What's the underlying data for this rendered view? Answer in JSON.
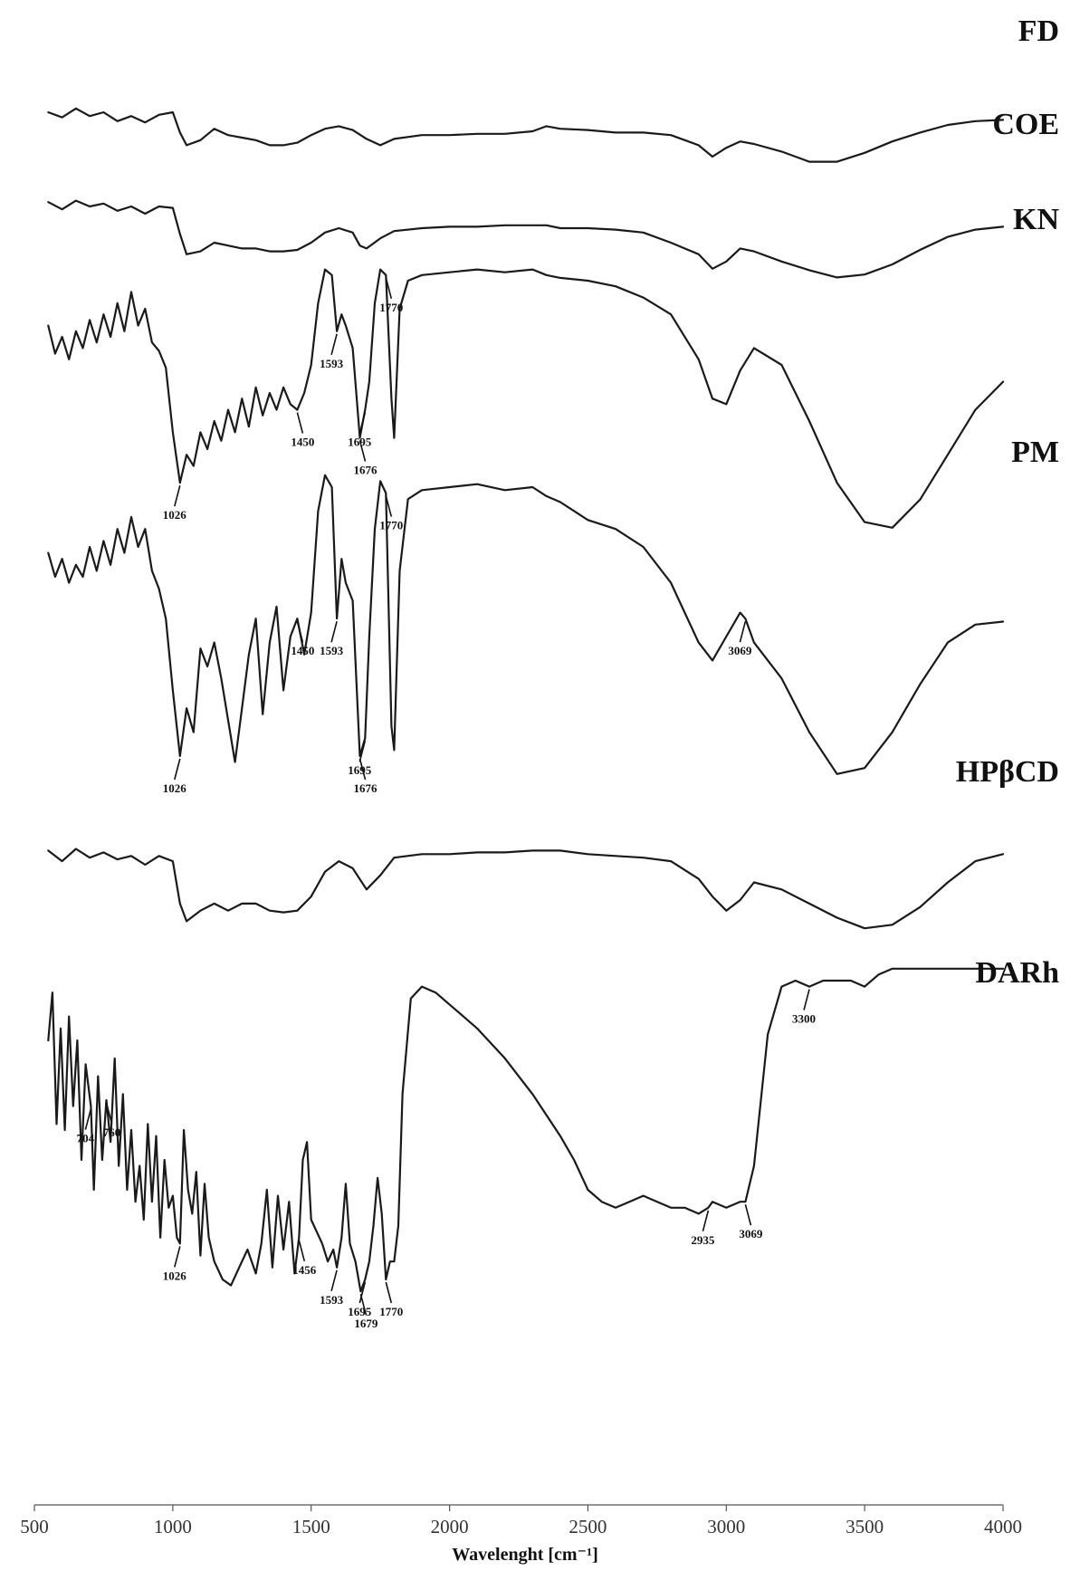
{
  "chart_data": {
    "type": "line",
    "xlabel": "Wavelenght [cm⁻¹]",
    "xlim": [
      500,
      4000
    ],
    "x_ticks": [
      500,
      1000,
      1500,
      2000,
      2500,
      3000,
      3500,
      4000
    ],
    "y_axis": "none (stacked spectra, arbitrary offset)",
    "grid": false,
    "series": [
      {
        "name": "FD",
        "x": [
          550,
          600,
          650,
          700,
          750,
          800,
          850,
          900,
          950,
          1000,
          1026,
          1050,
          1100,
          1150,
          1200,
          1250,
          1300,
          1350,
          1400,
          1450,
          1500,
          1550,
          1600,
          1650,
          1700,
          1750,
          1800,
          1900,
          2000,
          2100,
          2200,
          2300,
          2350,
          2400,
          2500,
          2600,
          2700,
          2800,
          2900,
          2950,
          3000,
          3050,
          3100,
          3200,
          3300,
          3400,
          3500,
          3600,
          3700,
          3800,
          3900,
          4000
        ],
        "y": [
          60,
          64,
          57,
          63,
          60,
          67,
          63,
          68,
          62,
          60,
          76,
          86,
          82,
          73,
          78,
          80,
          82,
          86,
          86,
          84,
          78,
          73,
          71,
          74,
          81,
          86,
          81,
          78,
          78,
          77,
          77,
          75,
          71,
          73,
          74,
          76,
          76,
          78,
          86,
          95,
          88,
          83,
          85,
          91,
          99,
          99,
          92,
          83,
          76,
          70,
          67,
          66
        ]
      },
      {
        "name": "COE",
        "x": [
          550,
          600,
          650,
          700,
          750,
          800,
          850,
          900,
          950,
          1000,
          1026,
          1050,
          1100,
          1150,
          1200,
          1250,
          1300,
          1350,
          1400,
          1450,
          1500,
          1550,
          1600,
          1650,
          1676,
          1700,
          1750,
          1800,
          1900,
          2000,
          2100,
          2200,
          2300,
          2350,
          2400,
          2500,
          2600,
          2700,
          2800,
          2900,
          2950,
          3000,
          3050,
          3100,
          3200,
          3300,
          3400,
          3500,
          3600,
          3700,
          3800,
          3900,
          4000
        ],
        "y": [
          52,
          57,
          51,
          55,
          53,
          58,
          55,
          60,
          55,
          56,
          74,
          88,
          86,
          80,
          82,
          84,
          84,
          86,
          86,
          85,
          80,
          73,
          70,
          73,
          82,
          84,
          77,
          72,
          70,
          69,
          69,
          68,
          68,
          68,
          70,
          70,
          71,
          73,
          80,
          88,
          98,
          93,
          84,
          86,
          93,
          99,
          104,
          102,
          95,
          85,
          76,
          71,
          69
        ]
      },
      {
        "name": "KN",
        "x": [
          550,
          575,
          600,
          625,
          650,
          675,
          700,
          725,
          750,
          775,
          800,
          825,
          850,
          875,
          900,
          925,
          950,
          975,
          1000,
          1026,
          1050,
          1075,
          1100,
          1125,
          1150,
          1175,
          1200,
          1225,
          1250,
          1275,
          1300,
          1325,
          1350,
          1375,
          1400,
          1425,
          1450,
          1475,
          1500,
          1525,
          1550,
          1575,
          1593,
          1610,
          1625,
          1650,
          1676,
          1695,
          1710,
          1730,
          1750,
          1770,
          1790,
          1800,
          1820,
          1850,
          1900,
          2000,
          2100,
          2200,
          2300,
          2350,
          2400,
          2500,
          2600,
          2700,
          2800,
          2900,
          2950,
          3000,
          3050,
          3100,
          3200,
          3300,
          3400,
          3500,
          3600,
          3700,
          3800,
          3900,
          4000
        ],
        "y": [
          36,
          46,
          40,
          48,
          38,
          44,
          34,
          42,
          32,
          40,
          28,
          38,
          24,
          36,
          30,
          42,
          45,
          51,
          74,
          92,
          82,
          86,
          74,
          80,
          70,
          77,
          66,
          74,
          62,
          72,
          58,
          68,
          60,
          66,
          58,
          64,
          66,
          60,
          50,
          28,
          16,
          18,
          38,
          32,
          36,
          44,
          76,
          66,
          56,
          28,
          16,
          18,
          62,
          76,
          30,
          20,
          18,
          17,
          16,
          17,
          16,
          18,
          19,
          20,
          22,
          26,
          32,
          48,
          62,
          64,
          52,
          44,
          50,
          70,
          92,
          106,
          108,
          98,
          82,
          66,
          56
        ]
      },
      {
        "name": "PM",
        "x": [
          550,
          575,
          600,
          625,
          650,
          675,
          700,
          725,
          750,
          775,
          800,
          825,
          850,
          875,
          900,
          925,
          950,
          975,
          1000,
          1026,
          1050,
          1075,
          1100,
          1125,
          1150,
          1175,
          1200,
          1225,
          1250,
          1275,
          1300,
          1325,
          1350,
          1375,
          1400,
          1425,
          1450,
          1475,
          1500,
          1525,
          1550,
          1575,
          1593,
          1610,
          1625,
          1650,
          1676,
          1695,
          1710,
          1730,
          1750,
          1770,
          1790,
          1800,
          1820,
          1850,
          1900,
          2000,
          2100,
          2200,
          2300,
          2350,
          2400,
          2500,
          2600,
          2700,
          2800,
          2900,
          2950,
          3000,
          3050,
          3069,
          3100,
          3200,
          3300,
          3400,
          3500,
          3600,
          3700,
          3800,
          3900,
          4000
        ],
        "y": [
          32,
          40,
          34,
          42,
          36,
          40,
          30,
          38,
          28,
          36,
          24,
          32,
          20,
          30,
          24,
          38,
          44,
          54,
          78,
          100,
          84,
          92,
          64,
          70,
          62,
          74,
          88,
          102,
          84,
          66,
          54,
          86,
          62,
          50,
          78,
          60,
          54,
          66,
          52,
          18,
          6,
          10,
          54,
          34,
          42,
          48,
          100,
          94,
          60,
          24,
          8,
          12,
          90,
          98,
          38,
          14,
          11,
          10,
          9,
          11,
          10,
          13,
          15,
          21,
          24,
          30,
          42,
          62,
          68,
          60,
          52,
          54,
          62,
          74,
          92,
          106,
          104,
          92,
          76,
          62,
          56,
          55
        ]
      },
      {
        "name": "HPβCD",
        "x": [
          550,
          600,
          650,
          700,
          750,
          800,
          850,
          900,
          950,
          1000,
          1026,
          1050,
          1100,
          1150,
          1200,
          1250,
          1300,
          1350,
          1400,
          1450,
          1500,
          1550,
          1600,
          1650,
          1700,
          1750,
          1800,
          1900,
          2000,
          2100,
          2200,
          2300,
          2350,
          2400,
          2500,
          2600,
          2700,
          2800,
          2900,
          2950,
          3000,
          3050,
          3100,
          3200,
          3300,
          3400,
          3500,
          3600,
          3700,
          3800,
          3900,
          4000
        ],
        "y": [
          52,
          58,
          51,
          56,
          53,
          57,
          55,
          60,
          55,
          58,
          82,
          92,
          86,
          82,
          86,
          82,
          82,
          86,
          87,
          86,
          78,
          64,
          58,
          62,
          74,
          66,
          56,
          54,
          54,
          53,
          53,
          52,
          52,
          52,
          54,
          55,
          56,
          58,
          68,
          78,
          86,
          80,
          70,
          74,
          82,
          90,
          96,
          94,
          84,
          70,
          58,
          54
        ]
      },
      {
        "name": "DARh",
        "x": [
          550,
          565,
          580,
          595,
          610,
          625,
          640,
          655,
          670,
          685,
          704,
          715,
          730,
          745,
          760,
          775,
          790,
          805,
          820,
          835,
          850,
          865,
          880,
          895,
          910,
          925,
          940,
          955,
          970,
          985,
          1000,
          1015,
          1026,
          1040,
          1055,
          1070,
          1085,
          1100,
          1115,
          1130,
          1150,
          1180,
          1210,
          1240,
          1270,
          1300,
          1320,
          1340,
          1360,
          1380,
          1400,
          1420,
          1440,
          1456,
          1470,
          1485,
          1500,
          1520,
          1540,
          1560,
          1580,
          1593,
          1610,
          1625,
          1640,
          1660,
          1679,
          1695,
          1710,
          1725,
          1740,
          1755,
          1770,
          1785,
          1800,
          1815,
          1830,
          1860,
          1900,
          1950,
          2000,
          2050,
          2100,
          2200,
          2300,
          2400,
          2450,
          2500,
          2550,
          2600,
          2650,
          2700,
          2750,
          2800,
          2850,
          2900,
          2935,
          2950,
          3000,
          3050,
          3069,
          3100,
          3150,
          3200,
          3250,
          3300,
          3350,
          3400,
          3450,
          3500,
          3550,
          3600,
          3700,
          3800,
          3900,
          4000
        ],
        "y": [
          30,
          14,
          58,
          26,
          60,
          22,
          52,
          30,
          70,
          38,
          52,
          80,
          42,
          70,
          50,
          64,
          36,
          72,
          48,
          80,
          60,
          84,
          72,
          90,
          58,
          84,
          62,
          96,
          70,
          86,
          82,
          96,
          98,
          60,
          80,
          88,
          74,
          102,
          78,
          96,
          104,
          110,
          112,
          106,
          100,
          108,
          98,
          80,
          106,
          82,
          100,
          84,
          108,
          96,
          70,
          64,
          90,
          94,
          98,
          104,
          100,
          106,
          96,
          78,
          98,
          104,
          114,
          110,
          104,
          92,
          76,
          88,
          110,
          104,
          104,
          92,
          48,
          16,
          12,
          14,
          18,
          22,
          26,
          36,
          48,
          62,
          70,
          80,
          84,
          86,
          84,
          82,
          84,
          86,
          86,
          88,
          86,
          84,
          86,
          84,
          84,
          72,
          28,
          12,
          10,
          12,
          10,
          10,
          10,
          12,
          8,
          6,
          6,
          6,
          6,
          6
        ]
      }
    ],
    "annotations": {
      "KN": [
        "1026",
        "1450",
        "1593",
        "1676",
        "1695",
        "1770"
      ],
      "PM": [
        "1026",
        "1450",
        "1593",
        "1676",
        "1695",
        "1770",
        "3069"
      ],
      "DARh": [
        "704",
        "760",
        "1026",
        "1456",
        "1593",
        "1679",
        "1695",
        "1770",
        "2935",
        "3069",
        "3300"
      ]
    }
  }
}
